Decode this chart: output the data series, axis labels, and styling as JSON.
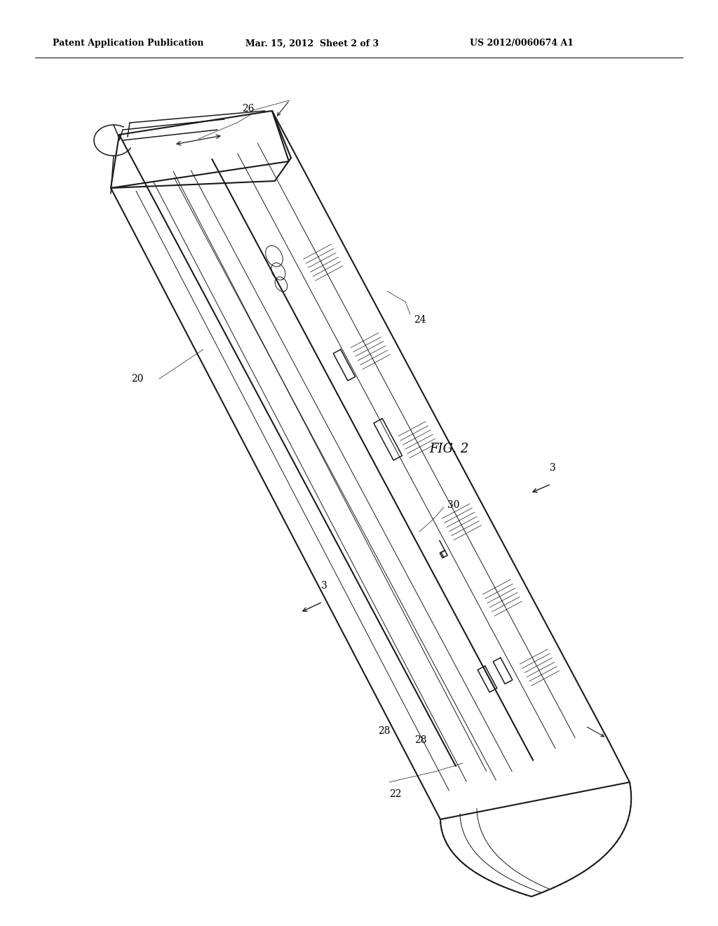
{
  "bg_color": "#ffffff",
  "line_color": "#1a1a1a",
  "fig_label": "FIG. 2",
  "header_left": "Patent Application Publication",
  "header_mid": "Mar. 15, 2012  Sheet 2 of 3",
  "header_right": "US 2012/0060674 A1",
  "lw_thick": 1.5,
  "lw_main": 1.1,
  "lw_thin": 0.7,
  "lw_fine": 0.5,
  "label_fs": 10,
  "header_fs": 9,
  "fig_fs": 13
}
